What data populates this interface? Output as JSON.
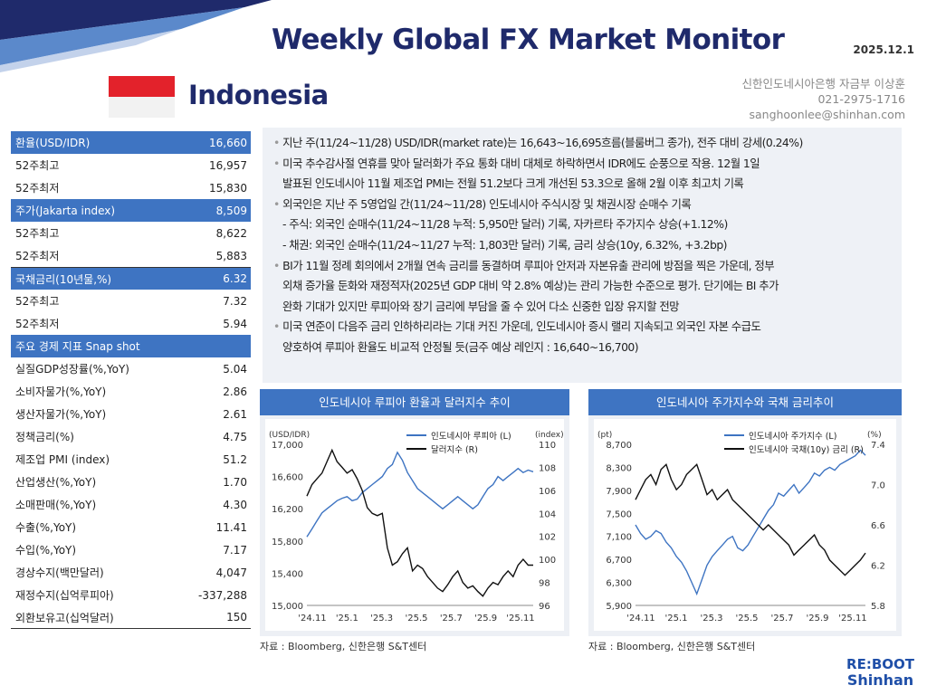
{
  "header": {
    "title": "Weekly Global FX Market Monitor",
    "date": "2025.12.1",
    "country": "Indonesia",
    "contact": [
      "신한인도네시아은행 자금부 이상훈",
      "021-2975-1716",
      "sanghoonlee@shinhan.com"
    ]
  },
  "table": {
    "fx": {
      "label": "환율(USD/IDR)",
      "value": "16,660",
      "rows": [
        {
          "label": "52주최고",
          "value": "16,957"
        },
        {
          "label": "52주최저",
          "value": "15,830"
        }
      ]
    },
    "stock": {
      "label": "주가(Jakarta index)",
      "value": "8,509",
      "rows": [
        {
          "label": "52주최고",
          "value": "8,622"
        },
        {
          "label": "52주최저",
          "value": "5,883"
        }
      ]
    },
    "bond": {
      "label": "국채금리(10년물,%)",
      "value": "6.32",
      "rows": [
        {
          "label": "52주최고",
          "value": "7.32"
        },
        {
          "label": "52주최저",
          "value": "5.94"
        }
      ]
    },
    "econ": {
      "label": "주요 경제 지표 Snap shot",
      "rows": [
        {
          "label": "실질GDP성장률(%,YoY)",
          "value": "5.04"
        },
        {
          "label": "소비자물가(%,YoY)",
          "value": "2.86"
        },
        {
          "label": "생산자물가(%,YoY)",
          "value": "2.61"
        },
        {
          "label": "정책금리(%)",
          "value": "4.75"
        },
        {
          "label": "제조업 PMI (index)",
          "value": "51.2"
        },
        {
          "label": "산업생산(%,YoY)",
          "value": "1.70"
        },
        {
          "label": "소매판매(%,YoY)",
          "value": "4.30"
        },
        {
          "label": "수출(%,YoY)",
          "value": "11.41"
        },
        {
          "label": "수입(%,YoY)",
          "value": "7.17"
        },
        {
          "label": "경상수지(백만달러)",
          "value": "4,047"
        },
        {
          "label": "재정수지(십억루피아)",
          "value": "-337,288"
        },
        {
          "label": "외환보유고(십억달러)",
          "value": "150"
        }
      ]
    }
  },
  "bullets": {
    "b1": "지난 주(11/24~11/28) USD/IDR(market rate)는 16,643~16,695흐름(블룸버그 종가), 전주 대비 강세(0.24%)",
    "b2a": "미국 추수감사절 연휴를 맞아 달러화가 주요 통화 대비 대체로 하락하면서 IDR에도 순풍으로 작용. 12월 1일",
    "b2b": "발표된 인도네시아 11월 제조업 PMI는 전월 51.2보다 크게 개선된 53.3으로 올해 2월 이후 최고치 기록",
    "b3": "외국인은 지난 주 5영업일 간(11/24~11/28) 인도네시아 주식시장 및 채권시장 순매수 기록",
    "b3s1": "- 주식: 외국인 순매수(11/24~11/28 누적: 5,950만 달러) 기록, 자카르타 주가지수 상승(+1.12%)",
    "b3s2": "- 채권: 외국인 순매수(11/24~11/27 누적: 1,803만 달러) 기록, 금리 상승(10y, 6.32%, +3.2bp)",
    "b4a": "BI가 11월 정례 회의에서 2개월 연속 금리를 동결하며 루피아 안저과 자본유출 관리에 방점을 찍은 가운데, 정부",
    "b4b": "외채 증가율 둔화와 재정적자(2025년 GDP 대비 약 2.8% 예상)는 관리 가능한 수준으로 평가. 단기에는 BI 추가",
    "b4c": "완화 기대가 있지만 루피아와 장기 금리에 부담을 줄 수 있어 다소 신중한 입장 유지할 전망",
    "b5a": "미국 연준이 다음주 금리 인하하리라는 기대 커진 가운데, 인도네시아 증시 랠리 지속되고 외국인 자본 수급도",
    "b5b": "양호하여 루피아 환율도 비교적 안정될 듯(금주 예상 레인지 : 16,640~16,700)"
  },
  "charts": [
    {
      "title": "인도네시아 루피아 환율과 달러지수 추이",
      "source": "자료 : Bloomberg, 신한은행 S&T센터",
      "chart_data": {
        "type": "line",
        "y_left_unit": "(USD/IDR)",
        "y_right_unit": "(index)",
        "y_left_ticks": [
          "17,000",
          "16,600",
          "16,200",
          "15,800",
          "15,400",
          "15,000"
        ],
        "y_left_range": [
          15000,
          17000
        ],
        "y_right_ticks": [
          "110",
          "108",
          "106",
          "104",
          "102",
          "100",
          "98",
          "96"
        ],
        "y_right_range": [
          96,
          110
        ],
        "x_ticks": [
          "'24.11",
          "'25.1",
          "'25.3",
          "'25.5",
          "'25.7",
          "'25.9",
          "'25.11"
        ],
        "series": [
          {
            "name": "인도네시아 루피아 (L)",
            "color": "#3e74c2",
            "axis": "left",
            "values": [
              15850,
              15950,
              16050,
              16150,
              16200,
              16250,
              16300,
              16330,
              16350,
              16300,
              16320,
              16400,
              16450,
              16500,
              16550,
              16600,
              16700,
              16750,
              16900,
              16800,
              16650,
              16550,
              16450,
              16400,
              16350,
              16300,
              16250,
              16200,
              16250,
              16300,
              16350,
              16300,
              16250,
              16200,
              16250,
              16350,
              16450,
              16500,
              16600,
              16550,
              16600,
              16650,
              16700,
              16650,
              16680,
              16660
            ]
          },
          {
            "name": "달러지수 (R)",
            "color": "#111111",
            "axis": "right",
            "values": [
              105.5,
              106.5,
              107.0,
              107.5,
              108.5,
              109.5,
              108.5,
              108.0,
              107.5,
              107.8,
              107.0,
              106.0,
              104.5,
              104.0,
              103.8,
              104.0,
              101.0,
              99.5,
              99.8,
              100.5,
              101.0,
              99.0,
              99.5,
              99.2,
              98.5,
              98.0,
              97.5,
              97.2,
              97.8,
              98.5,
              99.0,
              98.0,
              97.5,
              97.7,
              97.2,
              96.8,
              97.5,
              98.0,
              97.8,
              98.5,
              99.0,
              98.5,
              99.5,
              100.0,
              99.5,
              99.5
            ]
          }
        ]
      }
    },
    {
      "title": "인도네시아 주가지수와 국채 금리추이",
      "source": "자료 : Bloomberg, 신한은행 S&T센터",
      "chart_data": {
        "type": "line",
        "y_left_unit": "(pt)",
        "y_right_unit": "(%)",
        "y_left_ticks": [
          "8,700",
          "8,300",
          "7,900",
          "7,500",
          "7,100",
          "6,700",
          "6,300",
          "5,900"
        ],
        "y_left_range": [
          5900,
          8700
        ],
        "y_right_ticks": [
          "7.4",
          "7.0",
          "6.6",
          "6.2",
          "5.8"
        ],
        "y_right_range": [
          5.8,
          7.4
        ],
        "x_ticks": [
          "'24.11",
          "'25.1",
          "'25.3",
          "'25.5",
          "'25.7",
          "'25.9",
          "'25.11"
        ],
        "series": [
          {
            "name": "인도네시아 주가지수 (L)",
            "color": "#3e74c2",
            "axis": "left",
            "values": [
              7300,
              7150,
              7050,
              7100,
              7200,
              7150,
              7000,
              6900,
              6750,
              6650,
              6500,
              6300,
              6100,
              6350,
              6600,
              6750,
              6850,
              6950,
              7050,
              7100,
              6900,
              6850,
              6950,
              7100,
              7250,
              7400,
              7550,
              7650,
              7850,
              7800,
              7900,
              8000,
              7850,
              7950,
              8050,
              8200,
              8150,
              8250,
              8300,
              8250,
              8350,
              8400,
              8450,
              8500,
              8600,
              8509
            ]
          },
          {
            "name": "인도네시아 국채(10y) 금리 (R)",
            "color": "#111111",
            "axis": "right",
            "values": [
              6.85,
              6.95,
              7.05,
              7.1,
              7.0,
              7.15,
              7.2,
              7.05,
              6.95,
              7.0,
              7.1,
              7.15,
              7.2,
              7.05,
              6.9,
              6.95,
              6.85,
              6.9,
              6.95,
              6.85,
              6.8,
              6.75,
              6.7,
              6.65,
              6.6,
              6.55,
              6.6,
              6.55,
              6.5,
              6.45,
              6.4,
              6.3,
              6.35,
              6.4,
              6.45,
              6.5,
              6.4,
              6.35,
              6.25,
              6.2,
              6.15,
              6.1,
              6.15,
              6.2,
              6.25,
              6.32
            ]
          }
        ]
      }
    }
  ],
  "logo": {
    "line1": "RE:BOOT",
    "line2": "Shinhan"
  },
  "colors": {
    "accent": "#3e74c2",
    "navy": "#1f2a6b",
    "flag_red": "#e3222b",
    "panel": "#eef1f6"
  }
}
